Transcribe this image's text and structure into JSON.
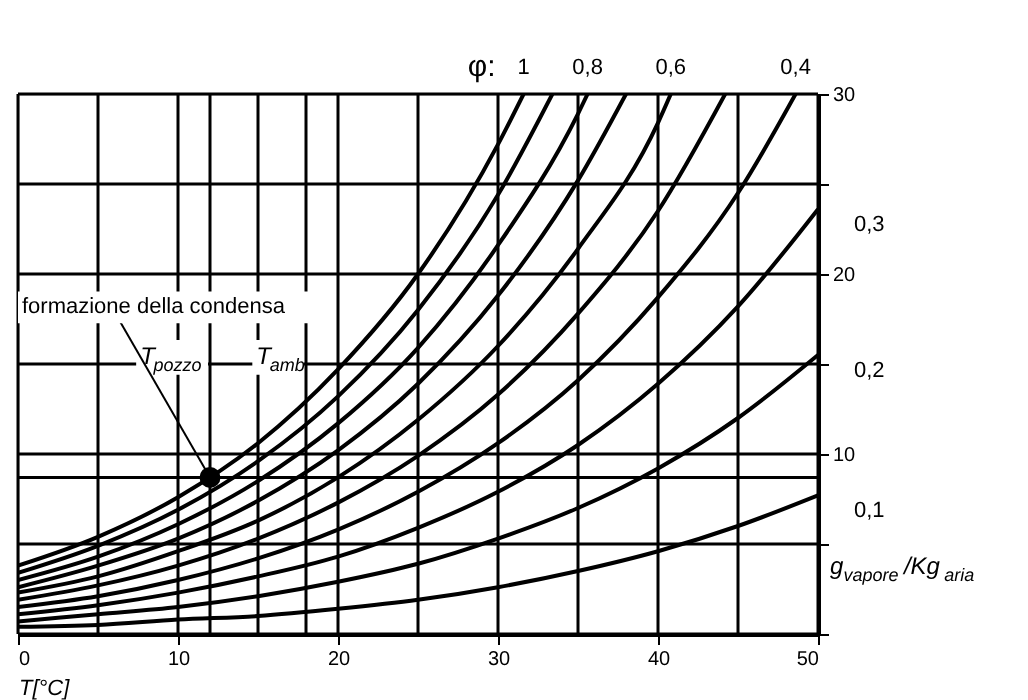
{
  "chart_data": {
    "type": "line",
    "xlabel": "T[°C]",
    "ylabel": "g$_{vapore}$/Kg$_{aria}$",
    "xlim": [
      0,
      50
    ],
    "ylim": [
      0,
      30
    ],
    "xticks": [
      0,
      {
        "value": 5,
        "label": null
      },
      10,
      {
        "value": 15,
        "label": null
      },
      20,
      {
        "value": 25,
        "label": null
      },
      30,
      {
        "value": 35,
        "label": null
      },
      40,
      {
        "value": 45,
        "label": null
      },
      50
    ],
    "yticks": [
      {
        "value": 0,
        "label": null
      },
      {
        "value": 5,
        "label": null
      },
      10,
      {
        "value": 15,
        "label": null
      },
      20,
      {
        "value": 25,
        "label": null
      },
      30
    ],
    "grid": true,
    "legend": false,
    "marker": "none",
    "line_style": "solid",
    "series": [
      {
        "name": "1",
        "color": "#000000",
        "x": [
          0,
          5,
          10,
          15,
          20,
          25,
          30,
          31.6
        ],
        "values": [
          3.8,
          5.4,
          7.6,
          10.6,
          14.7,
          20.0,
          27.2,
          30
        ]
      },
      {
        "color": "#000000",
        "x": [
          0,
          5,
          10,
          15,
          20,
          25,
          30,
          33.4
        ],
        "values": [
          3.4,
          4.9,
          6.9,
          9.6,
          13.2,
          18.0,
          24.4,
          30
        ]
      },
      {
        "name": "0,8",
        "color": "#000000",
        "x": [
          0,
          5,
          10,
          15,
          20,
          25,
          30,
          35,
          35.6
        ],
        "values": [
          3.0,
          4.3,
          6.1,
          8.5,
          11.7,
          15.9,
          21.6,
          28.9,
          30
        ]
      },
      {
        "color": "#000000",
        "x": [
          0,
          5,
          10,
          15,
          20,
          25,
          30,
          35,
          38.0
        ],
        "values": [
          2.6,
          3.8,
          5.3,
          7.4,
          10.2,
          13.9,
          18.8,
          25.2,
          30
        ]
      },
      {
        "name": "0,6",
        "color": "#000000",
        "x": [
          0,
          5,
          10,
          15,
          20,
          25,
          30,
          35,
          40,
          40.8
        ],
        "values": [
          2.3,
          3.2,
          4.6,
          6.3,
          8.7,
          11.9,
          16.0,
          21.4,
          28.4,
          30
        ]
      },
      {
        "color": "#000000",
        "x": [
          0,
          5,
          10,
          15,
          20,
          25,
          30,
          35,
          40,
          44.2
        ],
        "values": [
          1.9,
          2.7,
          3.8,
          5.3,
          7.3,
          9.9,
          13.3,
          17.8,
          23.5,
          30
        ]
      },
      {
        "name": "0,4",
        "color": "#000000",
        "x": [
          0,
          5,
          10,
          15,
          20,
          25,
          30,
          35,
          40,
          45,
          48.6
        ],
        "values": [
          1.5,
          2.1,
          3.0,
          4.2,
          5.8,
          7.9,
          10.6,
          14.1,
          18.7,
          24.5,
          30
        ]
      },
      {
        "name": "0,3",
        "color": "#000000",
        "x": [
          0,
          5,
          10,
          15,
          20,
          25,
          30,
          35,
          40,
          45,
          50
        ],
        "values": [
          1.1,
          1.6,
          2.3,
          3.2,
          4.3,
          5.9,
          7.9,
          10.5,
          13.9,
          18.2,
          23.6
        ]
      },
      {
        "name": "0,2",
        "color": "#000000",
        "x": [
          0,
          5,
          10,
          15,
          20,
          25,
          30,
          35,
          40,
          45,
          50
        ],
        "values": [
          0.7,
          1.1,
          1.5,
          2.1,
          2.9,
          3.9,
          5.3,
          7.0,
          9.2,
          12.0,
          15.5
        ]
      },
      {
        "name": "0,1",
        "color": "#000000",
        "x": [
          0,
          5,
          10,
          15,
          20,
          25,
          30,
          35,
          40,
          45,
          50
        ],
        "values": [
          0.4,
          0.5,
          0.8,
          1.0,
          1.4,
          1.9,
          2.6,
          3.5,
          4.6,
          6.0,
          7.7
        ]
      },
      {
        "type": "scatter",
        "marker": "circle",
        "color": "#000000",
        "x": [
          12
        ],
        "values": [
          8.7
        ]
      }
    ],
    "ref_lines": [
      {
        "axis": "x",
        "value": 12,
        "label": "T$_{pozzo}$",
        "color": "#000000"
      },
      {
        "axis": "x",
        "value": 18,
        "label": "T$_{amb}$",
        "color": "#000000"
      },
      {
        "axis": "y",
        "value": 8.7,
        "color": "#000000"
      }
    ],
    "annotations": [
      "φ:",
      {
        "text": "formazione della condensa",
        "x": 12,
        "y": 8.7
      }
    ]
  }
}
